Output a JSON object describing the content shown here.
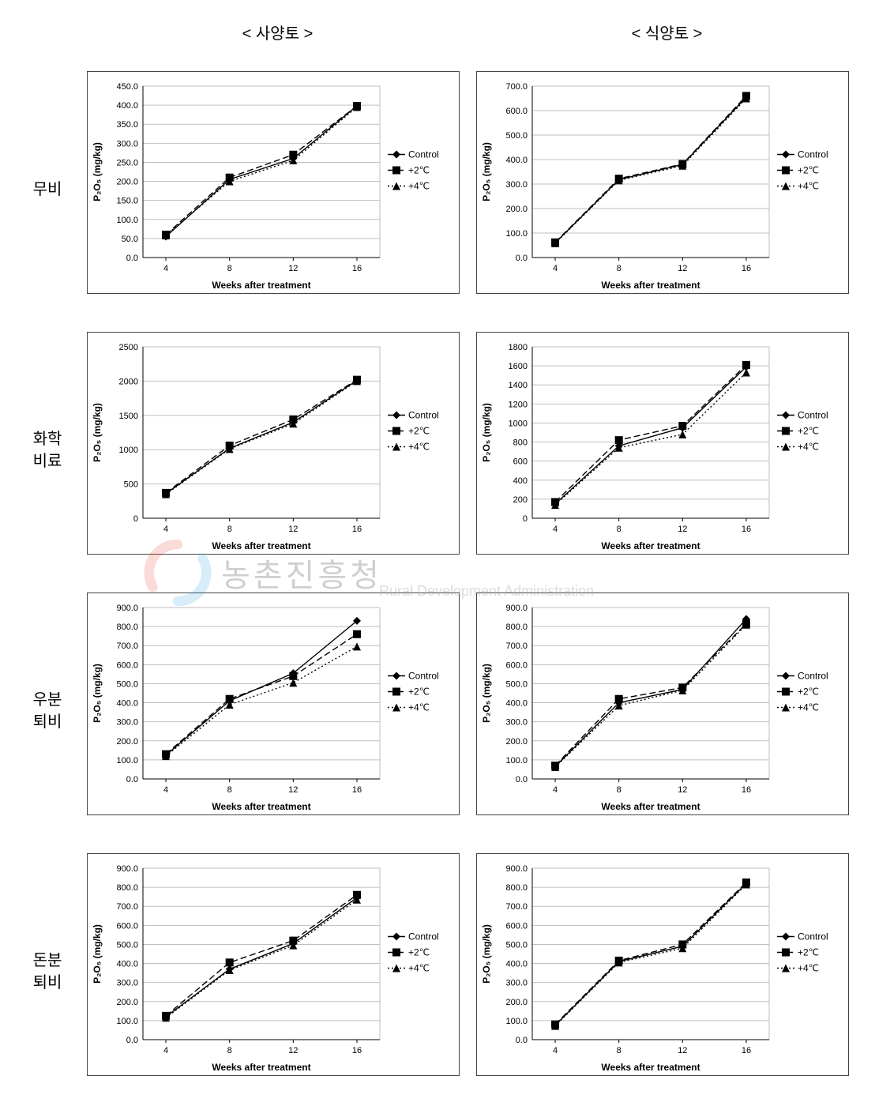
{
  "col_headers": [
    "< 사양토 >",
    "< 식양토 >"
  ],
  "row_labels": [
    [
      "무비"
    ],
    [
      "화학",
      "비료"
    ],
    [
      "우분",
      "퇴비"
    ],
    [
      "돈분",
      "퇴비"
    ]
  ],
  "watermark": {
    "kr": "농촌진흥청",
    "en": "Rural Development Administration"
  },
  "legend": {
    "items": [
      {
        "label": "Control",
        "marker": "diamond",
        "dash": "solid"
      },
      {
        "label": "+2℃",
        "marker": "square",
        "dash": "longdash"
      },
      {
        "label": "+4℃",
        "marker": "triangle",
        "dash": "dot"
      }
    ],
    "fontsize": 12,
    "color": "#000000"
  },
  "axis_common": {
    "xlabel": "Weeks after treatment",
    "ylabel": "P₂O₅ (mg/kg)",
    "label_fontsize": 12,
    "tick_fontsize": 11,
    "x_values": [
      4,
      8,
      12,
      16
    ],
    "grid_color": "#bfbfbf",
    "axis_color": "#000000",
    "background_color": "#ffffff",
    "series_color": "#000000",
    "line_width": 1.4,
    "marker_size": 5
  },
  "charts": [
    {
      "row": 0,
      "col": 0,
      "type": "line",
      "ylim": [
        0,
        450
      ],
      "ytick_step": 50,
      "ydecimals": 1,
      "series": [
        {
          "key": "Control",
          "y": [
            55,
            205,
            260,
            398
          ]
        },
        {
          "key": "+2℃",
          "y": [
            60,
            210,
            270,
            398
          ]
        },
        {
          "key": "+4℃",
          "y": [
            58,
            200,
            255,
            395
          ]
        }
      ]
    },
    {
      "row": 0,
      "col": 1,
      "type": "line",
      "ylim": [
        0,
        700
      ],
      "ytick_step": 100,
      "ydecimals": 1,
      "series": [
        {
          "key": "Control",
          "y": [
            60,
            318,
            380,
            655
          ]
        },
        {
          "key": "+2℃",
          "y": [
            62,
            322,
            382,
            660
          ]
        },
        {
          "key": "+4℃",
          "y": [
            58,
            315,
            375,
            650
          ]
        }
      ]
    },
    {
      "row": 1,
      "col": 0,
      "type": "line",
      "ylim": [
        0,
        2500
      ],
      "ytick_step": 500,
      "ydecimals": 0,
      "series": [
        {
          "key": "Control",
          "y": [
            360,
            1020,
            1400,
            2010
          ]
        },
        {
          "key": "+2℃",
          "y": [
            370,
            1060,
            1440,
            2020
          ]
        },
        {
          "key": "+4℃",
          "y": [
            350,
            1010,
            1380,
            2000
          ]
        }
      ]
    },
    {
      "row": 1,
      "col": 1,
      "type": "line",
      "ylim": [
        0,
        1800
      ],
      "ytick_step": 200,
      "ydecimals": 0,
      "series": [
        {
          "key": "Control",
          "y": [
            150,
            760,
            950,
            1590
          ]
        },
        {
          "key": "+2℃",
          "y": [
            170,
            820,
            970,
            1610
          ]
        },
        {
          "key": "+4℃",
          "y": [
            140,
            740,
            880,
            1530
          ]
        }
      ]
    },
    {
      "row": 2,
      "col": 0,
      "type": "line",
      "ylim": [
        0,
        900
      ],
      "ytick_step": 100,
      "ydecimals": 1,
      "series": [
        {
          "key": "Control",
          "y": [
            125,
            410,
            555,
            830
          ]
        },
        {
          "key": "+2℃",
          "y": [
            130,
            420,
            540,
            760
          ]
        },
        {
          "key": "+4℃",
          "y": [
            120,
            390,
            505,
            695
          ]
        }
      ]
    },
    {
      "row": 2,
      "col": 1,
      "type": "line",
      "ylim": [
        0,
        900
      ],
      "ytick_step": 100,
      "ydecimals": 1,
      "series": [
        {
          "key": "Control",
          "y": [
            65,
            400,
            470,
            840
          ]
        },
        {
          "key": "+2℃",
          "y": [
            70,
            420,
            480,
            815
          ]
        },
        {
          "key": "+4℃",
          "y": [
            62,
            385,
            465,
            810
          ]
        }
      ]
    },
    {
      "row": 3,
      "col": 0,
      "type": "line",
      "ylim": [
        0,
        900
      ],
      "ytick_step": 100,
      "ydecimals": 1,
      "series": [
        {
          "key": "Control",
          "y": [
            120,
            370,
            505,
            745
          ]
        },
        {
          "key": "+2℃",
          "y": [
            125,
            405,
            520,
            760
          ]
        },
        {
          "key": "+4℃",
          "y": [
            115,
            365,
            495,
            735
          ]
        }
      ]
    },
    {
      "row": 3,
      "col": 1,
      "type": "line",
      "ylim": [
        0,
        900
      ],
      "ytick_step": 100,
      "ydecimals": 1,
      "series": [
        {
          "key": "Control",
          "y": [
            75,
            410,
            490,
            820
          ]
        },
        {
          "key": "+2℃",
          "y": [
            80,
            415,
            500,
            825
          ]
        },
        {
          "key": "+4℃",
          "y": [
            72,
            405,
            480,
            815
          ]
        }
      ]
    }
  ]
}
